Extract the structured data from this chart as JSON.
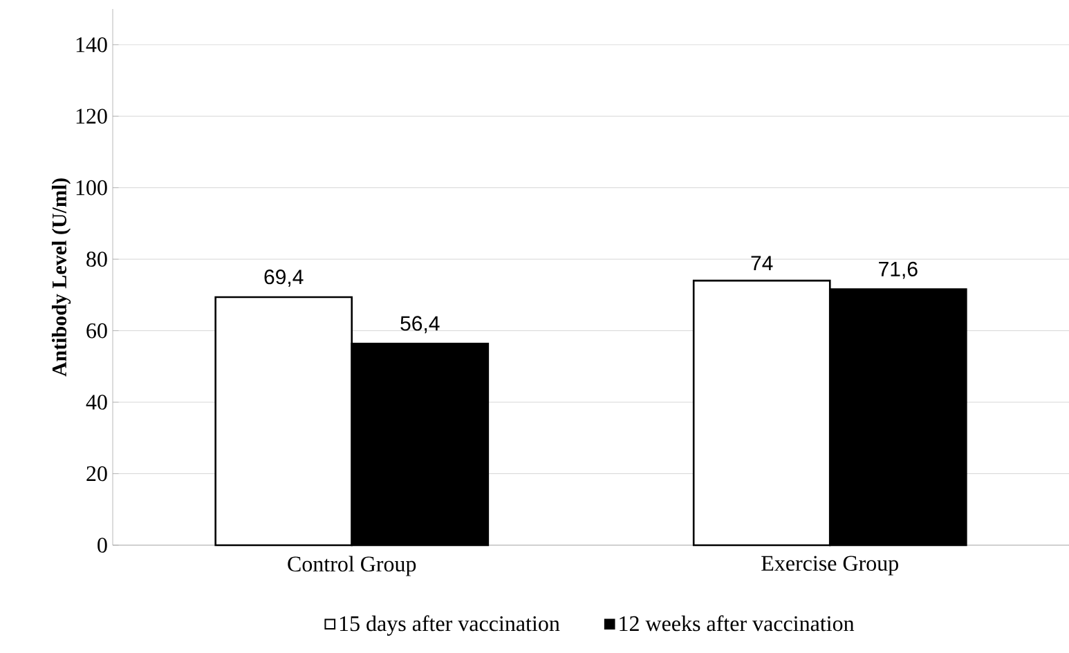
{
  "chart_data": {
    "type": "bar",
    "ylabel": "Antibody Level (U/ml)",
    "categories": [
      "Control Group",
      "Exercise Group"
    ],
    "series": [
      {
        "name": "15 days after vaccination",
        "color": "#ffffff",
        "values": [
          69.4,
          74
        ],
        "value_labels": [
          "69,4",
          "74"
        ]
      },
      {
        "name": "12 weeks after vaccination",
        "color": "#000000",
        "values": [
          56.4,
          71.6
        ],
        "value_labels": [
          "56,4",
          "71,6"
        ]
      }
    ],
    "ylim": [
      0,
      150
    ],
    "yticks": [
      0,
      20,
      40,
      60,
      80,
      100,
      120,
      140
    ],
    "grid": "y",
    "legend": "bottom"
  }
}
